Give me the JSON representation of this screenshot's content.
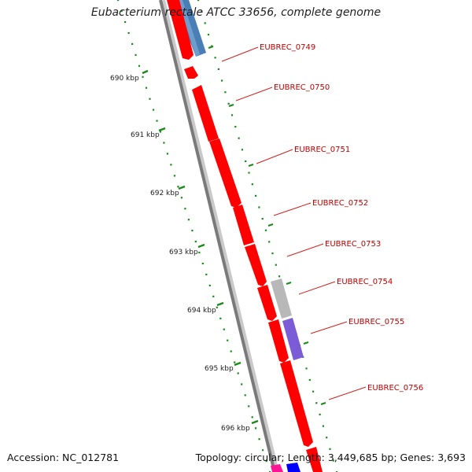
{
  "title": "Eubacterium rectale ATCC 33656, complete genome",
  "footer": {
    "accession": "Accession: NC_012781",
    "summary": "Topology: circular; Length: 3,449,685 bp; Genes: 3,693"
  },
  "ruler": {
    "labels": [
      "690 kbp",
      "691 kbp",
      "692 kbp",
      "693 kbp",
      "694 kbp",
      "695 kbp",
      "696 kbp"
    ]
  },
  "colors": {
    "gene_red": "#ff0000",
    "gene_blue": "#4a7fb5",
    "gene_gray": "#b8b8b8",
    "gene_purple": "#7b5cd6",
    "backbone": "#7a7a7a",
    "tick_green": "#1a8a1a",
    "label_red": "#c00000"
  },
  "genes": [
    {
      "label": "EUBREC_0749"
    },
    {
      "label": "EUBREC_0750"
    },
    {
      "label": "EUBREC_0751"
    },
    {
      "label": "EUBREC_0752"
    },
    {
      "label": "EUBREC_0753"
    },
    {
      "label": "EUBREC_0754"
    },
    {
      "label": "EUBREC_0755"
    },
    {
      "label": "EUBREC_0756"
    }
  ]
}
